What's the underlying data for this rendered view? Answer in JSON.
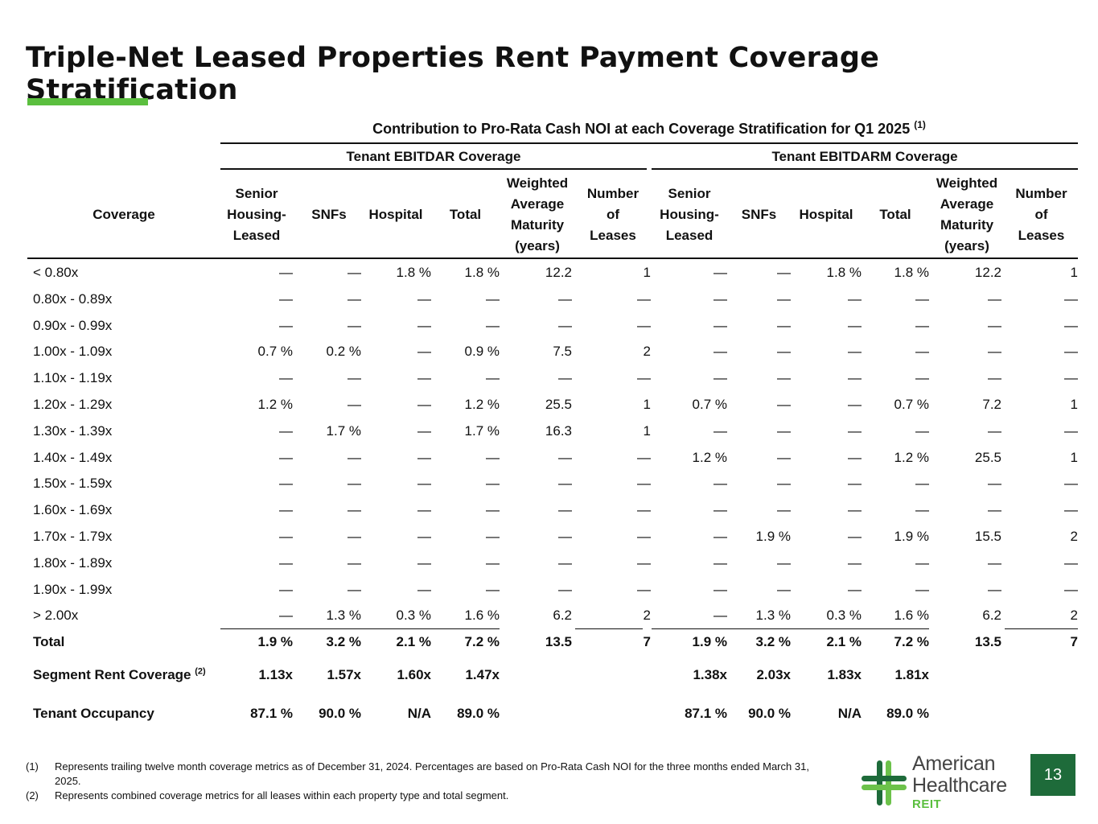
{
  "title": "Triple-Net Leased Properties Rent Payment Coverage Stratification",
  "colors": {
    "accent": "#5BBF3F",
    "dark_green": "#1E6B3A",
    "light_green": "#6CC24A"
  },
  "table": {
    "super_header": "Contribution to Pro-Rata Cash NOI at each Coverage Stratification for Q1 2025",
    "super_header_note": "(1)",
    "group_left": "Tenant EBITDAR Coverage",
    "group_right": "Tenant EBITDARM Coverage",
    "coverage_header": "Coverage",
    "column_headers": [
      "Senior\nHousing-\nLeased",
      "SNFs",
      "Hospital",
      "Total",
      "Weighted\nAverage\nMaturity\n(years)",
      "Number\nof\nLeases",
      "Senior\nHousing-\nLeased",
      "SNFs",
      "Hospital",
      "Total",
      "Weighted\nAverage\nMaturity\n(years)",
      "Number\nof\nLeases"
    ],
    "rows": [
      [
        "< 0.80x",
        "—",
        "—",
        "1.8 %",
        "1.8 %",
        "12.2",
        "1",
        "—",
        "—",
        "1.8 %",
        "1.8 %",
        "12.2",
        "1"
      ],
      [
        "0.80x - 0.89x",
        "—",
        "—",
        "—",
        "—",
        "—",
        "—",
        "—",
        "—",
        "—",
        "—",
        "—",
        "—"
      ],
      [
        "0.90x - 0.99x",
        "—",
        "—",
        "—",
        "—",
        "—",
        "—",
        "—",
        "—",
        "—",
        "—",
        "—",
        "—"
      ],
      [
        "1.00x - 1.09x",
        "0.7 %",
        "0.2 %",
        "—",
        "0.9 %",
        "7.5",
        "2",
        "—",
        "—",
        "—",
        "—",
        "—",
        "—"
      ],
      [
        "1.10x - 1.19x",
        "—",
        "—",
        "—",
        "—",
        "—",
        "—",
        "—",
        "—",
        "—",
        "—",
        "—",
        "—"
      ],
      [
        "1.20x - 1.29x",
        "1.2 %",
        "—",
        "—",
        "1.2 %",
        "25.5",
        "1",
        "0.7 %",
        "—",
        "—",
        "0.7 %",
        "7.2",
        "1"
      ],
      [
        "1.30x - 1.39x",
        "—",
        "1.7 %",
        "—",
        "1.7 %",
        "16.3",
        "1",
        "—",
        "—",
        "—",
        "—",
        "—",
        "—"
      ],
      [
        "1.40x - 1.49x",
        "—",
        "—",
        "—",
        "—",
        "—",
        "—",
        "1.2 %",
        "—",
        "—",
        "1.2 %",
        "25.5",
        "1"
      ],
      [
        "1.50x - 1.59x",
        "—",
        "—",
        "—",
        "—",
        "—",
        "—",
        "—",
        "—",
        "—",
        "—",
        "—",
        "—"
      ],
      [
        "1.60x - 1.69x",
        "—",
        "—",
        "—",
        "—",
        "—",
        "—",
        "—",
        "—",
        "—",
        "—",
        "—",
        "—"
      ],
      [
        "1.70x - 1.79x",
        "—",
        "—",
        "—",
        "—",
        "—",
        "—",
        "—",
        "1.9 %",
        "—",
        "1.9 %",
        "15.5",
        "2"
      ],
      [
        "1.80x - 1.89x",
        "—",
        "—",
        "—",
        "—",
        "—",
        "—",
        "—",
        "—",
        "—",
        "—",
        "—",
        "—"
      ],
      [
        "1.90x - 1.99x",
        "—",
        "—",
        "—",
        "—",
        "—",
        "—",
        "—",
        "—",
        "—",
        "—",
        "—",
        "—"
      ],
      [
        "> 2.00x",
        "—",
        "1.3 %",
        "0.3 %",
        "1.6 %",
        "6.2",
        "2",
        "—",
        "1.3 %",
        "0.3 %",
        "1.6 %",
        "6.2",
        "2"
      ]
    ],
    "total_row": [
      "Total",
      "1.9 %",
      "3.2 %",
      "2.1 %",
      "7.2 %",
      "13.5",
      "7",
      "1.9 %",
      "3.2 %",
      "2.1 %",
      "7.2 %",
      "13.5",
      "7"
    ],
    "segment_row": {
      "label": "Segment Rent Coverage",
      "note": "(2)",
      "values": [
        "1.13x",
        "1.57x",
        "1.60x",
        "1.47x",
        "",
        "",
        "1.38x",
        "2.03x",
        "1.83x",
        "1.81x",
        "",
        ""
      ]
    },
    "occupancy_row": {
      "label": "Tenant Occupancy",
      "values": [
        "87.1 %",
        "90.0 %",
        "N/A",
        "89.0 %",
        "",
        "",
        "87.1 %",
        "90.0 %",
        "N/A",
        "89.0 %",
        "",
        ""
      ]
    }
  },
  "footnotes": [
    {
      "num": "(1)",
      "text": "Represents trailing twelve month coverage metrics as of December 31, 2024. Percentages are based on Pro-Rata Cash NOI for the three months ended March 31, 2025."
    },
    {
      "num": "(2)",
      "text": "Represents combined coverage metrics for all leases within each property type and total segment."
    }
  ],
  "logo": {
    "line1": "American",
    "line2": "Healthcare",
    "line3": "REIT"
  },
  "page_number": "13"
}
